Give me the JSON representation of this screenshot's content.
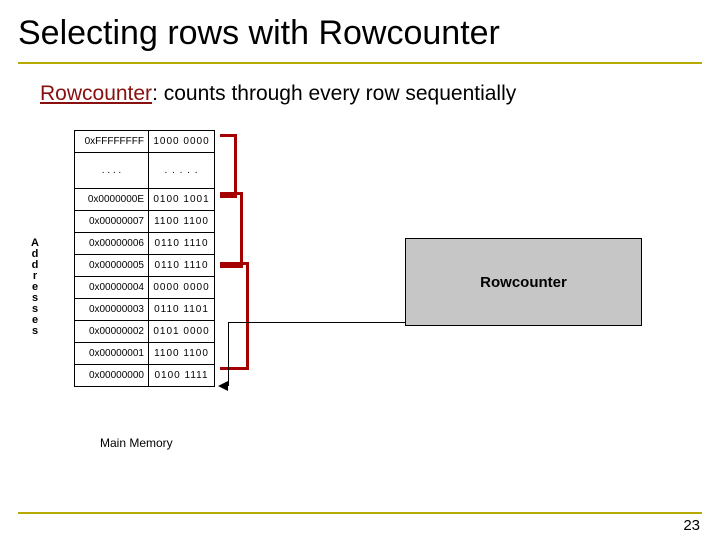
{
  "colors": {
    "rule": "#b6aa00",
    "lead": "#8a0f0f",
    "bracket": "#a50000",
    "rc_box_bg": "#c6c6c6"
  },
  "title": "Selecting rows with Rowcounter",
  "subtitle_lead": "Rowcounter",
  "subtitle_rest": ": counts through every row sequentially",
  "page_number": "23",
  "address_vertical_label": "Addresses",
  "mem_caption": "Main Memory",
  "rowcounter_label": "Rowcounter",
  "memory_rows": [
    {
      "addr": "0xFFFFFFFF",
      "val": "1000 0000"
    },
    {
      "gap": true,
      "dots_addr": ". . . .",
      "dots_val": ". . . . ."
    },
    {
      "addr": "0x0000000E",
      "val": "0100 1001"
    },
    {
      "addr": "0x00000007",
      "val": "1100 1100"
    },
    {
      "addr": "0x00000006",
      "val": "0110 1110"
    },
    {
      "addr": "0x00000005",
      "val": "0110 1110"
    },
    {
      "addr": "0x00000004",
      "val": "0000 0000"
    },
    {
      "addr": "0x00000003",
      "val": "0110 1101"
    },
    {
      "addr": "0x00000002",
      "val": "0101 0000"
    },
    {
      "addr": "0x00000001",
      "val": "1100 1100"
    },
    {
      "addr": "0x00000000",
      "val": "0100 1111"
    }
  ]
}
